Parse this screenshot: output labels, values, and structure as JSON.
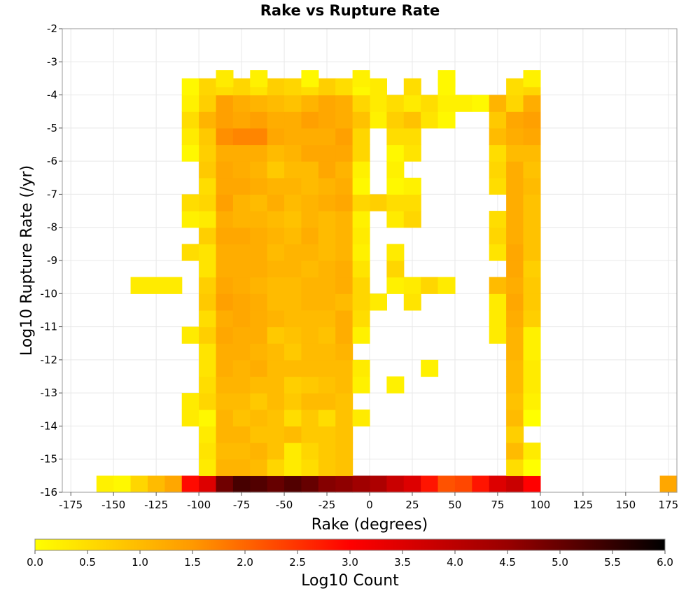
{
  "chart_data": {
    "type": "heatmap",
    "title": "Rake vs Rupture Rate",
    "xlabel": "Rake (degrees)",
    "ylabel": "Log10 Rupture Rate (/yr)",
    "xlim": [
      -180,
      180
    ],
    "ylim": [
      -16,
      -2
    ],
    "x_ticks": [
      "-175",
      "-150",
      "-125",
      "-100",
      "-75",
      "-50",
      "-25",
      "0",
      "25",
      "50",
      "75",
      "100",
      "125",
      "150",
      "175"
    ],
    "y_ticks": [
      "-2",
      "-3",
      "-4",
      "-5",
      "-6",
      "-7",
      "-8",
      "-9",
      "-10",
      "-11",
      "-12",
      "-13",
      "-14",
      "-15",
      "-16"
    ],
    "bin_width": 10,
    "bin_height": 0.5,
    "grid": true,
    "colorbar": {
      "label": "Log10 Count",
      "min": 0.0,
      "max": 6.0,
      "ticks": [
        "0.0",
        "0.5",
        "1.0",
        "1.5",
        "2.0",
        "2.5",
        "3.0",
        "3.5",
        "4.0",
        "4.5",
        "5.0",
        "5.5",
        "6.0"
      ],
      "stops": [
        "#ffff00",
        "#ff9900",
        "#ff0000",
        "#990000",
        "#000000"
      ]
    },
    "cells": {
      "-15.75": {
        "-155": 0.2,
        "-145": 0.1,
        "-135": 0.6,
        "-125": 1.0,
        "-115": 1.3,
        "-105": 2.9,
        "-95": 3.5,
        "-85": 4.9,
        "-75": 5.3,
        "-65": 5.2,
        "-55": 5.0,
        "-45": 5.2,
        "-35": 5.0,
        "-25": 4.7,
        "-15": 4.6,
        "-5": 4.4,
        "5": 4.2,
        "15": 3.8,
        "25": 3.5,
        "35": 2.8,
        "45": 2.2,
        "55": 2.3,
        "65": 2.8,
        "75": 3.5,
        "85": 3.8,
        "95": 3.0,
        "175": 1.3
      },
      "-15.25": {
        "-95": 0.3,
        "-85": 1.1,
        "-75": 1.1,
        "-65": 1.0,
        "-55": 0.6,
        "-45": 0.3,
        "-35": 0.5,
        "-25": 0.8,
        "-15": 0.9,
        "85": 0.5,
        "95": 0.0
      },
      "-14.75": {
        "-95": 0.4,
        "-85": 1.0,
        "-75": 1.0,
        "-65": 1.1,
        "-55": 0.9,
        "-45": 0.3,
        "-35": 0.6,
        "-25": 0.8,
        "-15": 0.9,
        "85": 1.0,
        "95": 0.3
      },
      "-14.25": {
        "-95": 0.3,
        "-85": 1.1,
        "-75": 1.1,
        "-65": 0.9,
        "-55": 0.9,
        "-45": 1.0,
        "-35": 0.8,
        "-25": 0.8,
        "-15": 0.9,
        "85": 0.7
      },
      "-13.75": {
        "-105": 0.3,
        "-95": 0.1,
        "-85": 1.1,
        "-75": 0.9,
        "-65": 1.0,
        "-55": 0.9,
        "-45": 0.5,
        "-35": 0.8,
        "-25": 0.5,
        "-15": 0.9,
        "-5": 0.3,
        "85": 1.0,
        "95": 0.0
      },
      "-13.25": {
        "-105": 0.3,
        "-95": 0.6,
        "-85": 1.0,
        "-75": 1.0,
        "-65": 0.8,
        "-55": 1.0,
        "-45": 0.8,
        "-35": 1.0,
        "-25": 1.0,
        "-15": 0.9,
        "85": 0.9,
        "95": 0.2
      },
      "-12.75": {
        "-95": 0.5,
        "-85": 1.1,
        "-75": 1.1,
        "-65": 1.0,
        "-55": 1.0,
        "-45": 0.7,
        "-35": 0.8,
        "-25": 0.9,
        "-15": 1.0,
        "-5": 0.2,
        "15": 0.2,
        "85": 1.0,
        "95": 0.3
      },
      "-12.25": {
        "-95": 0.4,
        "-85": 1.2,
        "-75": 1.1,
        "-65": 1.2,
        "-55": 1.0,
        "-45": 1.0,
        "-35": 1.0,
        "-25": 1.0,
        "-15": 1.0,
        "-5": 0.3,
        "35": 0.2,
        "85": 1.0,
        "95": 0.3
      },
      "-11.75": {
        "-95": 0.4,
        "-85": 1.2,
        "-75": 1.2,
        "-65": 1.1,
        "-55": 1.0,
        "-45": 0.8,
        "-35": 1.0,
        "-25": 1.0,
        "-15": 1.1,
        "85": 1.1,
        "95": 0.2
      },
      "-11.25": {
        "-105": 0.3,
        "-95": 0.7,
        "-85": 1.3,
        "-75": 1.2,
        "-65": 1.2,
        "-55": 0.8,
        "-45": 0.9,
        "-35": 1.0,
        "-25": 0.9,
        "-15": 1.2,
        "-5": 0.2,
        "75": 0.3,
        "85": 1.1,
        "95": 0.2
      },
      "-10.75": {
        "-95": 0.5,
        "-85": 1.2,
        "-75": 1.3,
        "-65": 1.2,
        "-55": 1.1,
        "-45": 1.0,
        "-35": 1.0,
        "-25": 1.0,
        "-15": 1.2,
        "-5": 0.5,
        "75": 0.3,
        "85": 1.2,
        "95": 0.7
      },
      "-10.25": {
        "-95": 0.8,
        "-85": 1.4,
        "-75": 1.3,
        "-65": 1.2,
        "-55": 1.0,
        "-45": 1.0,
        "-35": 1.1,
        "-25": 1.1,
        "-15": 1.0,
        "-5": 0.6,
        "5": 0.3,
        "25": 0.4,
        "75": 0.3,
        "85": 1.3,
        "95": 0.8
      },
      "-9.75": {
        "-135": 0.3,
        "-125": 0.3,
        "-115": 0.3,
        "-95": 0.7,
        "-85": 1.3,
        "-75": 1.2,
        "-65": 1.1,
        "-55": 1.0,
        "-45": 1.0,
        "-35": 1.1,
        "-25": 1.1,
        "-15": 1.2,
        "-5": 0.6,
        "15": 0.2,
        "25": 0.3,
        "35": 0.6,
        "45": 0.3,
        "75": 1.0,
        "85": 1.2,
        "95": 0.8
      },
      "-9.25": {
        "-95": 0.4,
        "-85": 1.2,
        "-75": 1.2,
        "-65": 1.2,
        "-55": 1.1,
        "-45": 1.1,
        "-35": 1.0,
        "-25": 1.1,
        "-15": 1.2,
        "-5": 0.4,
        "15": 0.6,
        "85": 1.3,
        "95": 0.7
      },
      "-8.75": {
        "-105": 0.5,
        "-95": 0.4,
        "-85": 1.2,
        "-75": 1.2,
        "-65": 1.2,
        "-55": 1.0,
        "-45": 1.1,
        "-35": 1.1,
        "-25": 1.0,
        "-15": 1.1,
        "-5": 0.2,
        "15": 0.3,
        "75": 0.4,
        "85": 1.3,
        "95": 0.9
      },
      "-8.25": {
        "-95": 0.7,
        "-85": 1.3,
        "-75": 1.3,
        "-65": 1.2,
        "-55": 1.1,
        "-45": 1.0,
        "-35": 1.2,
        "-25": 1.0,
        "-15": 1.1,
        "-5": 0.3,
        "75": 0.6,
        "85": 1.2,
        "95": 0.9
      },
      "-7.75": {
        "-105": 0.2,
        "-95": 0.3,
        "-85": 1.2,
        "-75": 1.1,
        "-65": 1.1,
        "-55": 1.0,
        "-45": 0.9,
        "-35": 1.1,
        "-25": 1.0,
        "-15": 1.1,
        "-5": 0.2,
        "15": 0.3,
        "25": 0.6,
        "75": 0.5,
        "85": 1.2,
        "95": 0.9
      },
      "-7.25": {
        "-105": 0.5,
        "-95": 0.6,
        "-85": 1.4,
        "-75": 1.1,
        "-65": 1.0,
        "-55": 1.2,
        "-45": 1.0,
        "-35": 1.1,
        "-25": 1.2,
        "-15": 1.3,
        "-5": 0.6,
        "5": 0.7,
        "15": 0.5,
        "25": 0.5,
        "85": 1.2,
        "95": 0.9
      },
      "-6.75": {
        "-95": 0.5,
        "-85": 1.3,
        "-75": 1.3,
        "-65": 1.2,
        "-55": 1.1,
        "-45": 1.1,
        "-35": 1.0,
        "-25": 1.1,
        "-15": 1.2,
        "-5": 0.1,
        "15": 0.1,
        "25": 0.2,
        "75": 0.5,
        "85": 1.2,
        "95": 1.0
      },
      "-6.25": {
        "-95": 0.8,
        "-85": 1.3,
        "-75": 1.2,
        "-65": 1.1,
        "-55": 0.8,
        "-45": 1.0,
        "-35": 1.0,
        "-25": 1.3,
        "-15": 1.1,
        "-5": 0.2,
        "15": 0.2,
        "75": 0.6,
        "85": 1.2,
        "95": 0.9
      },
      "-5.75": {
        "-105": 0.1,
        "-95": 0.7,
        "-85": 1.2,
        "-75": 1.2,
        "-65": 1.2,
        "-55": 1.0,
        "-45": 1.1,
        "-35": 1.3,
        "-25": 1.3,
        "-15": 1.3,
        "-5": 0.6,
        "15": 0.1,
        "25": 0.4,
        "75": 0.5,
        "85": 1.0,
        "95": 1.0
      },
      "-5.25": {
        "-105": 0.3,
        "-95": 0.8,
        "-85": 1.6,
        "-75": 1.7,
        "-65": 1.7,
        "-55": 1.3,
        "-45": 1.2,
        "-35": 1.2,
        "-25": 1.2,
        "-15": 1.4,
        "-5": 0.6,
        "15": 0.5,
        "25": 0.5,
        "75": 1.0,
        "85": 1.2,
        "95": 1.3
      },
      "-4.75": {
        "-105": 0.5,
        "-95": 1.1,
        "-85": 1.4,
        "-75": 1.3,
        "-65": 1.4,
        "-55": 1.2,
        "-45": 1.2,
        "-35": 1.4,
        "-25": 1.3,
        "-15": 1.2,
        "-5": 0.9,
        "5": 0.2,
        "15": 0.7,
        "25": 0.9,
        "35": 0.4,
        "45": 0.1,
        "75": 0.8,
        "85": 1.3,
        "95": 1.4
      },
      "-4.25": {
        "-105": 0.2,
        "-95": 0.7,
        "-85": 1.4,
        "-75": 1.2,
        "-65": 1.1,
        "-55": 1.0,
        "-45": 0.9,
        "-35": 1.1,
        "-25": 1.3,
        "-15": 1.2,
        "-5": 0.6,
        "5": 0.3,
        "15": 0.5,
        "25": 0.3,
        "35": 0.5,
        "45": 0.2,
        "55": 0.2,
        "65": 0.1,
        "75": 1.1,
        "85": 0.6,
        "95": 1.2
      },
      "-3.75": {
        "-105": 0.1,
        "-95": 0.6,
        "-85": 0.5,
        "-75": 0.6,
        "-65": 0.4,
        "-55": 0.7,
        "-45": 0.6,
        "-35": 0.5,
        "-25": 0.7,
        "-15": 0.5,
        "-5": 0.1,
        "5": 0.3,
        "25": 0.5,
        "45": 0.1,
        "85": 0.5,
        "95": 0.6
      },
      "-3.5": {
        "-85": 0.3,
        "-65": 0.2,
        "-35": 0.1,
        "-5": 0.2,
        "45": 0.1,
        "95": 0.2
      }
    }
  }
}
